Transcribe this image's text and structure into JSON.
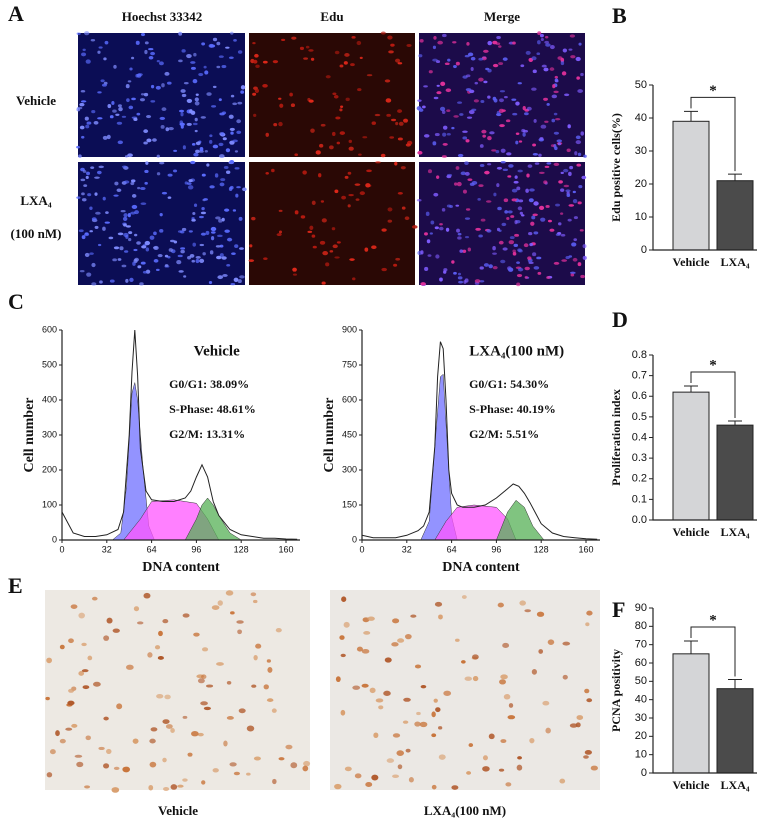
{
  "figure": {
    "panel_labels": [
      "A",
      "B",
      "C",
      "D",
      "E",
      "F"
    ],
    "image_columns": [
      "Hoechst 33342",
      "Edu",
      "Merge"
    ],
    "image_rows": [
      "Vehicle",
      "LXA₄",
      "(100 nM)"
    ],
    "ihc_captions": [
      "Vehicle",
      "LXA₄(100 nM)"
    ]
  },
  "chart_data": [
    {
      "type": "line",
      "title": "Vehicle",
      "x_label": "DNA content",
      "y_label": "Cell number",
      "xlim": [
        0,
        170
      ],
      "xticks": [
        0,
        32,
        64,
        96,
        128,
        160
      ],
      "ylim": [
        0,
        600
      ],
      "yticks": [
        0,
        100,
        200,
        300,
        400,
        500,
        600
      ],
      "annotations": [
        "G0/G1: 38.09%",
        "S-Phase: 48.61%",
        "G2/M: 13.31%"
      ],
      "series": [
        {
          "color": "#6f6fff",
          "fill": true,
          "x": [
            36,
            42,
            46,
            50,
            52,
            54,
            58,
            62,
            66
          ],
          "values": [
            0,
            20,
            150,
            420,
            450,
            400,
            200,
            40,
            0
          ]
        },
        {
          "color": "#ff55ff",
          "fill": true,
          "x": [
            44,
            56,
            64,
            80,
            96,
            104,
            112
          ],
          "values": [
            0,
            60,
            110,
            115,
            105,
            60,
            0
          ]
        },
        {
          "color": "#55b055",
          "fill": true,
          "x": [
            88,
            96,
            100,
            104,
            108,
            112,
            120,
            128
          ],
          "values": [
            0,
            60,
            100,
            120,
            100,
            70,
            20,
            0
          ]
        },
        {
          "color": "#222222",
          "fill": false,
          "x": [
            0,
            8,
            16,
            24,
            32,
            40,
            44,
            48,
            50,
            52,
            54,
            56,
            60,
            64,
            72,
            80,
            88,
            92,
            96,
            100,
            104,
            108,
            112,
            120,
            128,
            136,
            144,
            152,
            160,
            168
          ],
          "values": [
            80,
            20,
            10,
            10,
            15,
            30,
            80,
            300,
            480,
            600,
            470,
            260,
            140,
            115,
            110,
            110,
            120,
            140,
            180,
            215,
            180,
            110,
            70,
            30,
            15,
            10,
            5,
            5,
            3,
            2
          ]
        }
      ]
    },
    {
      "type": "line",
      "title": "LXA₄(100 nM)",
      "x_label": "DNA content",
      "y_label": "Cell number",
      "xlim": [
        0,
        170
      ],
      "xticks": [
        0,
        32,
        64,
        96,
        128,
        160
      ],
      "ylim": [
        0,
        900
      ],
      "yticks": [
        0,
        150,
        300,
        450,
        600,
        750,
        900
      ],
      "annotations": [
        "G0/G1: 54.30%",
        "S-Phase: 40.19%",
        "G2/M: 5.51%"
      ],
      "series": [
        {
          "color": "#6f6fff",
          "fill": true,
          "x": [
            42,
            48,
            52,
            56,
            58,
            60,
            64,
            68
          ],
          "values": [
            0,
            80,
            400,
            700,
            710,
            500,
            100,
            0
          ]
        },
        {
          "color": "#ff55ff",
          "fill": true,
          "x": [
            52,
            60,
            68,
            80,
            96,
            104,
            110
          ],
          "values": [
            0,
            80,
            140,
            150,
            140,
            90,
            0
          ]
        },
        {
          "color": "#55b055",
          "fill": true,
          "x": [
            96,
            104,
            110,
            116,
            122,
            130
          ],
          "values": [
            0,
            120,
            170,
            140,
            60,
            0
          ]
        },
        {
          "color": "#222222",
          "fill": false,
          "x": [
            0,
            8,
            16,
            24,
            32,
            40,
            44,
            48,
            52,
            54,
            56,
            58,
            60,
            62,
            64,
            68,
            72,
            80,
            88,
            96,
            104,
            108,
            112,
            116,
            120,
            128,
            136,
            144,
            152,
            160,
            168
          ],
          "values": [
            20,
            10,
            10,
            10,
            20,
            40,
            60,
            120,
            400,
            700,
            850,
            820,
            600,
            300,
            200,
            150,
            140,
            140,
            150,
            180,
            220,
            240,
            230,
            200,
            160,
            70,
            30,
            15,
            10,
            5,
            3
          ]
        }
      ]
    },
    {
      "type": "bar",
      "y_label": "Edu positive cells(%)",
      "categories": [
        "Vehicle",
        "LXA₄"
      ],
      "values": [
        39,
        21
      ],
      "errors": [
        3,
        2
      ],
      "colors": [
        "#d4d5d7",
        "#4b4b4b"
      ],
      "ylim": [
        0,
        50
      ],
      "yticks": [
        0,
        10,
        20,
        30,
        40,
        50
      ],
      "significance": "*"
    },
    {
      "type": "bar",
      "y_label": "Proliferation index",
      "categories": [
        "Vehicle",
        "LXA₄"
      ],
      "values": [
        0.62,
        0.46
      ],
      "errors": [
        0.03,
        0.02
      ],
      "colors": [
        "#d4d5d7",
        "#4b4b4b"
      ],
      "ylim": [
        0,
        0.8
      ],
      "yticks": [
        {
          "value": 0,
          "label": "0.0"
        },
        0.1,
        0.2,
        0.3,
        0.4,
        0.5,
        0.6,
        0.7,
        0.8
      ],
      "significance": "*"
    },
    {
      "type": "bar",
      "y_label": "PCNA positivity",
      "categories": [
        "Vehicle",
        "LXA₄"
      ],
      "values": [
        65,
        46
      ],
      "errors": [
        7,
        5
      ],
      "colors": [
        "#d4d5d7",
        "#4b4b4b"
      ],
      "ylim": [
        0,
        90
      ],
      "yticks": [
        0,
        10,
        20,
        30,
        40,
        50,
        60,
        70,
        80,
        90
      ],
      "significance": "*"
    }
  ]
}
